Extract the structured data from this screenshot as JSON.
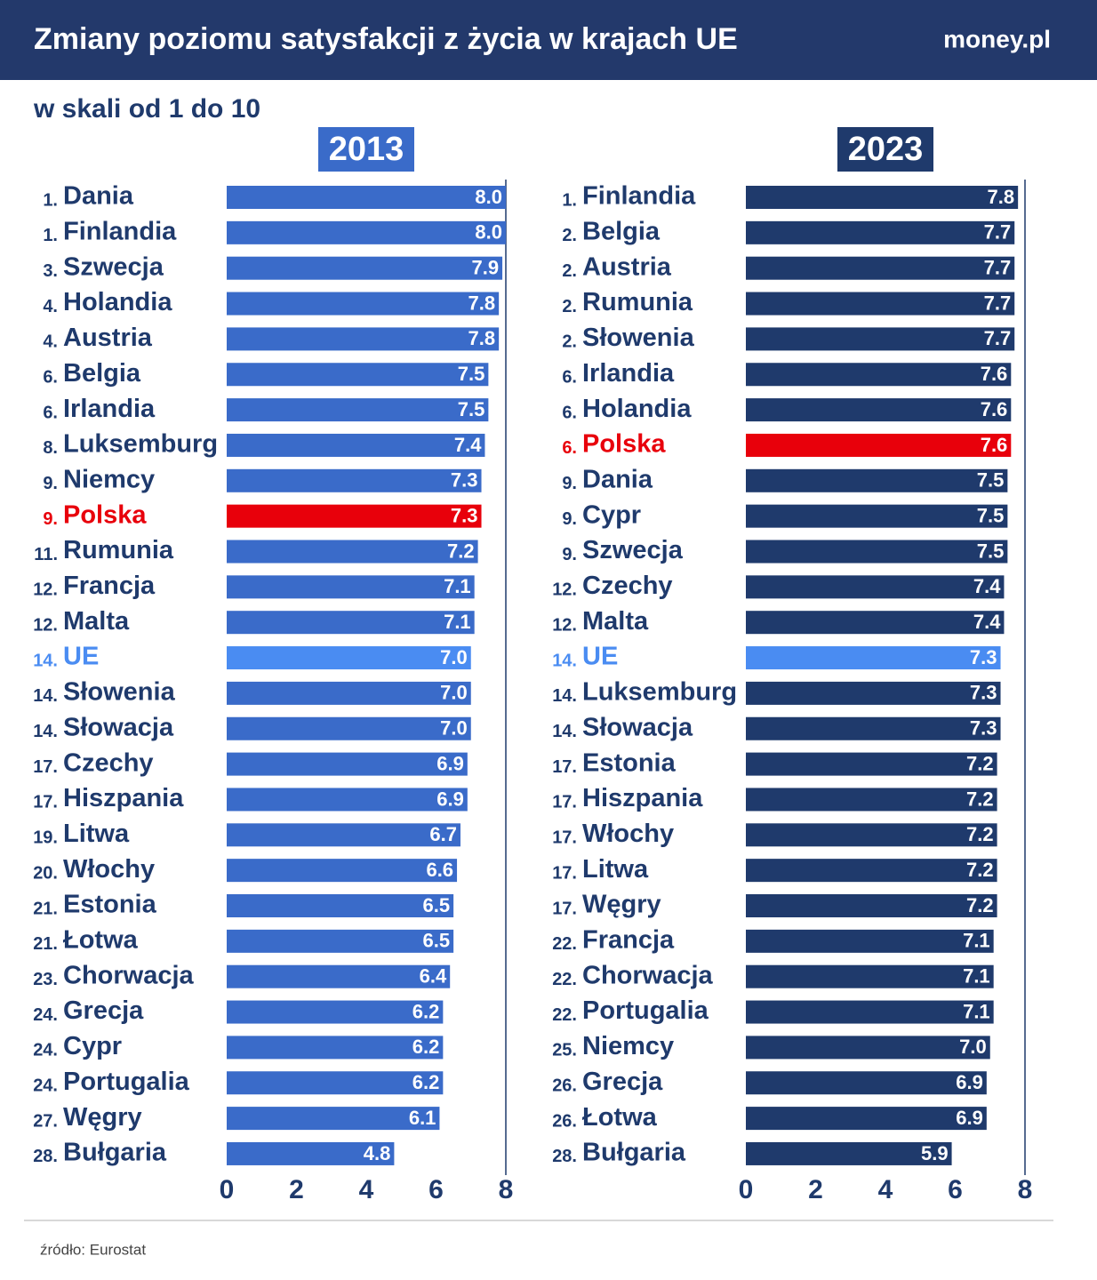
{
  "title": "Zmiany poziomu satysfakcji z życia w krajach UE",
  "brand": "money.pl",
  "subtitle": "w skali od 1 do 10",
  "source": "źródło: Eurostat",
  "chart_data": [
    {
      "type": "bar",
      "orientation": "horizontal",
      "title": "2013",
      "color": "#3a6bc9",
      "categories": [
        "Dania",
        "Finlandia",
        "Szwecja",
        "Holandia",
        "Austria",
        "Belgia",
        "Irlandia",
        "Luksemburg",
        "Niemcy",
        "Polska",
        "Rumunia",
        "Francja",
        "Malta",
        "UE",
        "Słowenia",
        "Słowacja",
        "Czechy",
        "Hiszpania",
        "Litwa",
        "Włochy",
        "Estonia",
        "Łotwa",
        "Chorwacja",
        "Grecja",
        "Cypr",
        "Portugalia",
        "Węgry",
        "Bułgaria"
      ],
      "ranks": [
        "1.",
        "1.",
        "3.",
        "4.",
        "4.",
        "6.",
        "6.",
        "8.",
        "9.",
        "9.",
        "11.",
        "12.",
        "12.",
        "14.",
        "14.",
        "14.",
        "17.",
        "17.",
        "19.",
        "20.",
        "21.",
        "21.",
        "23.",
        "24.",
        "24.",
        "24.",
        "27.",
        "28."
      ],
      "values": [
        8,
        8,
        7.9,
        7.8,
        7.8,
        7.5,
        7.5,
        7.4,
        7.3,
        7.3,
        7.2,
        7.1,
        7.1,
        7,
        7,
        7,
        6.9,
        6.9,
        6.7,
        6.6,
        6.5,
        6.5,
        6.4,
        6.2,
        6.2,
        6.2,
        6.1,
        4.8
      ],
      "value_labels": [
        "8.0",
        "8.0",
        "7.9",
        "7.8",
        "7.8",
        "7.5",
        "7.5",
        "7.4",
        "7.3",
        "7.3",
        "7.2",
        "7.1",
        "7.1",
        "7.0",
        "7.0",
        "7.0",
        "6.9",
        "6.9",
        "6.7",
        "6.6",
        "6.5",
        "6.5",
        "6.4",
        "6.2",
        "6.2",
        "6.2",
        "6.1",
        "4.8"
      ],
      "colors": [
        "#3a6bc9",
        "#3a6bc9",
        "#3a6bc9",
        "#3a6bc9",
        "#3a6bc9",
        "#3a6bc9",
        "#3a6bc9",
        "#3a6bc9",
        "#3a6bc9",
        "#e8000b",
        "#3a6bc9",
        "#3a6bc9",
        "#3a6bc9",
        "#4a8cf2",
        "#3a6bc9",
        "#3a6bc9",
        "#3a6bc9",
        "#3a6bc9",
        "#3a6bc9",
        "#3a6bc9",
        "#3a6bc9",
        "#3a6bc9",
        "#3a6bc9",
        "#3a6bc9",
        "#3a6bc9",
        "#3a6bc9",
        "#3a6bc9",
        "#3a6bc9"
      ],
      "xlim": [
        0,
        8
      ],
      "xticks": [
        0,
        2,
        4,
        6,
        8
      ]
    },
    {
      "type": "bar",
      "orientation": "horizontal",
      "title": "2023",
      "color": "#1f3a6c",
      "categories": [
        "Finlandia",
        "Belgia",
        "Austria",
        "Rumunia",
        "Słowenia",
        "Irlandia",
        "Holandia",
        "Polska",
        "Dania",
        "Cypr",
        "Szwecja",
        "Czechy",
        "Malta",
        "UE",
        "Luksemburg",
        "Słowacja",
        "Estonia",
        "Hiszpania",
        "Włochy",
        "Litwa",
        "Węgry",
        "Francja",
        "Chorwacja",
        "Portugalia",
        "Niemcy",
        "Grecja",
        "Łotwa",
        "Bułgaria"
      ],
      "ranks": [
        "1.",
        "2.",
        "2.",
        "2.",
        "2.",
        "6.",
        "6.",
        "6.",
        "9.",
        "9.",
        "9.",
        "12.",
        "12.",
        "14.",
        "14.",
        "14.",
        "17.",
        "17.",
        "17.",
        "17.",
        "17.",
        "22.",
        "22.",
        "22.",
        "25.",
        "26.",
        "26.",
        "28."
      ],
      "values": [
        7.8,
        7.7,
        7.7,
        7.7,
        7.7,
        7.6,
        7.6,
        7.6,
        7.5,
        7.5,
        7.5,
        7.4,
        7.4,
        7.3,
        7.3,
        7.3,
        7.2,
        7.2,
        7.2,
        7.2,
        7.2,
        7.1,
        7.1,
        7.1,
        7,
        6.9,
        6.9,
        5.9
      ],
      "value_labels": [
        "7.8",
        "7.7",
        "7.7",
        "7.7",
        "7.7",
        "7.6",
        "7.6",
        "7.6",
        "7.5",
        "7.5",
        "7.5",
        "7.4",
        "7.4",
        "7.3",
        "7.3",
        "7.3",
        "7.2",
        "7.2",
        "7.2",
        "7.2",
        "7.2",
        "7.1",
        "7.1",
        "7.1",
        "7.0",
        "6.9",
        "6.9",
        "5.9"
      ],
      "colors": [
        "#1f3a6c",
        "#1f3a6c",
        "#1f3a6c",
        "#1f3a6c",
        "#1f3a6c",
        "#1f3a6c",
        "#1f3a6c",
        "#e8000b",
        "#1f3a6c",
        "#1f3a6c",
        "#1f3a6c",
        "#1f3a6c",
        "#1f3a6c",
        "#4a8cf2",
        "#1f3a6c",
        "#1f3a6c",
        "#1f3a6c",
        "#1f3a6c",
        "#1f3a6c",
        "#1f3a6c",
        "#1f3a6c",
        "#1f3a6c",
        "#1f3a6c",
        "#1f3a6c",
        "#1f3a6c",
        "#1f3a6c",
        "#1f3a6c",
        "#1f3a6c"
      ],
      "xlim": [
        0,
        8
      ],
      "xticks": [
        0,
        2,
        4,
        6,
        8
      ]
    }
  ]
}
